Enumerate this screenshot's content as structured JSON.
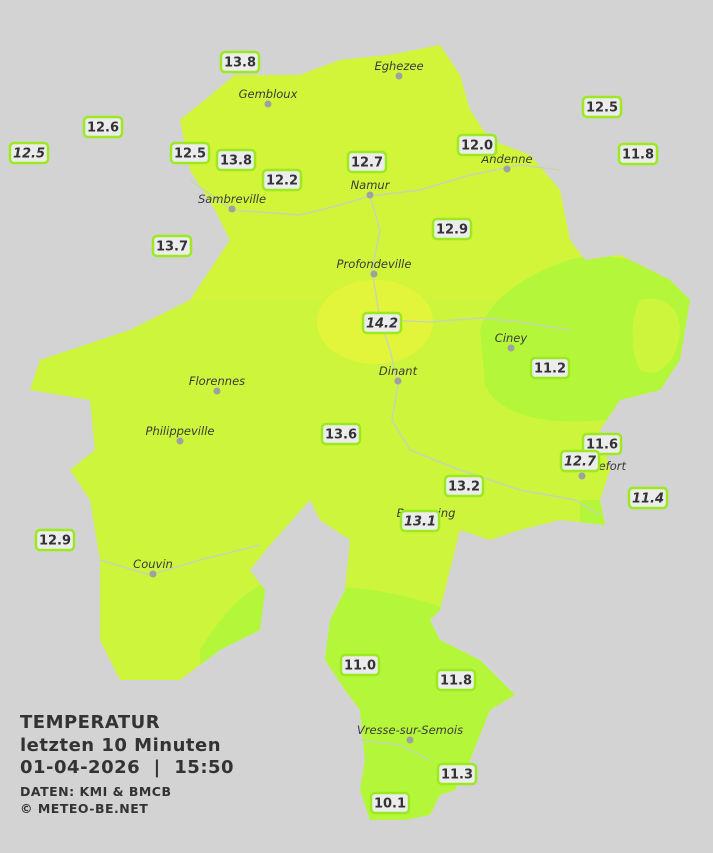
{
  "title": "TEMPERATUR",
  "subtitle": "letzten 10 Minuten",
  "timestamp": "01-04-2026  |  15:50",
  "source": "DATEN: KMI & BMCB",
  "copyright": "© METEO-BE.NET",
  "cities": [
    "Eghezee",
    "Gembloux",
    "Andenne",
    "Namur",
    "Sambreville",
    "Profondeville",
    "Ciney",
    "Dinant",
    "Florennes",
    "Philippeville",
    "Rochefort",
    "Beauraing",
    "Couvin",
    "Vresse-sur-Semois"
  ],
  "stations": [
    "13.8",
    "12.6",
    "12.5",
    "12.5",
    "13.8",
    "12.2",
    "12.7",
    "12.0",
    "12.5",
    "11.8",
    "12.9",
    "13.7",
    "14.2",
    "11.2",
    "13.6",
    "11.6",
    "12.7",
    "11.4",
    "13.2",
    "13.1",
    "12.9",
    "11.0",
    "11.8",
    "11.3",
    "10.1"
  ]
}
